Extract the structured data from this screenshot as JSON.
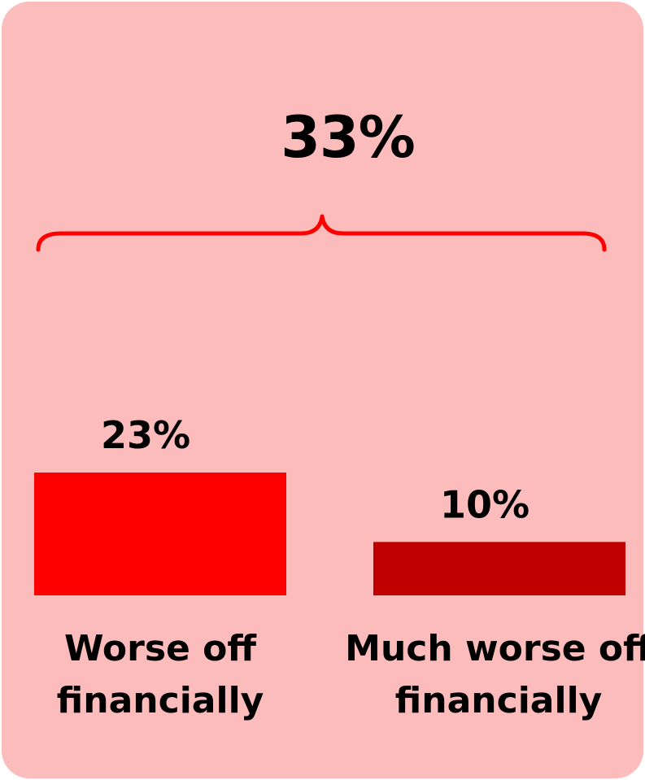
{
  "colors": {
    "background": "#fcbcbc",
    "bracket": "#ff0000",
    "bar_worse": "#ff0000",
    "bar_much_worse": "#c00000"
  },
  "summary": {
    "total_label": "33%"
  },
  "chart_data": {
    "type": "bar",
    "categories": [
      "Worse off financially",
      "Much worse off financially"
    ],
    "category_lines": [
      [
        "Worse off",
        "financially"
      ],
      [
        "Much worse off",
        "financially"
      ]
    ],
    "values": [
      23,
      10
    ],
    "data_labels": [
      "23%",
      "10%"
    ],
    "bar_colors": [
      "#ff0000",
      "#c00000"
    ],
    "ylim": [
      0,
      23
    ]
  }
}
